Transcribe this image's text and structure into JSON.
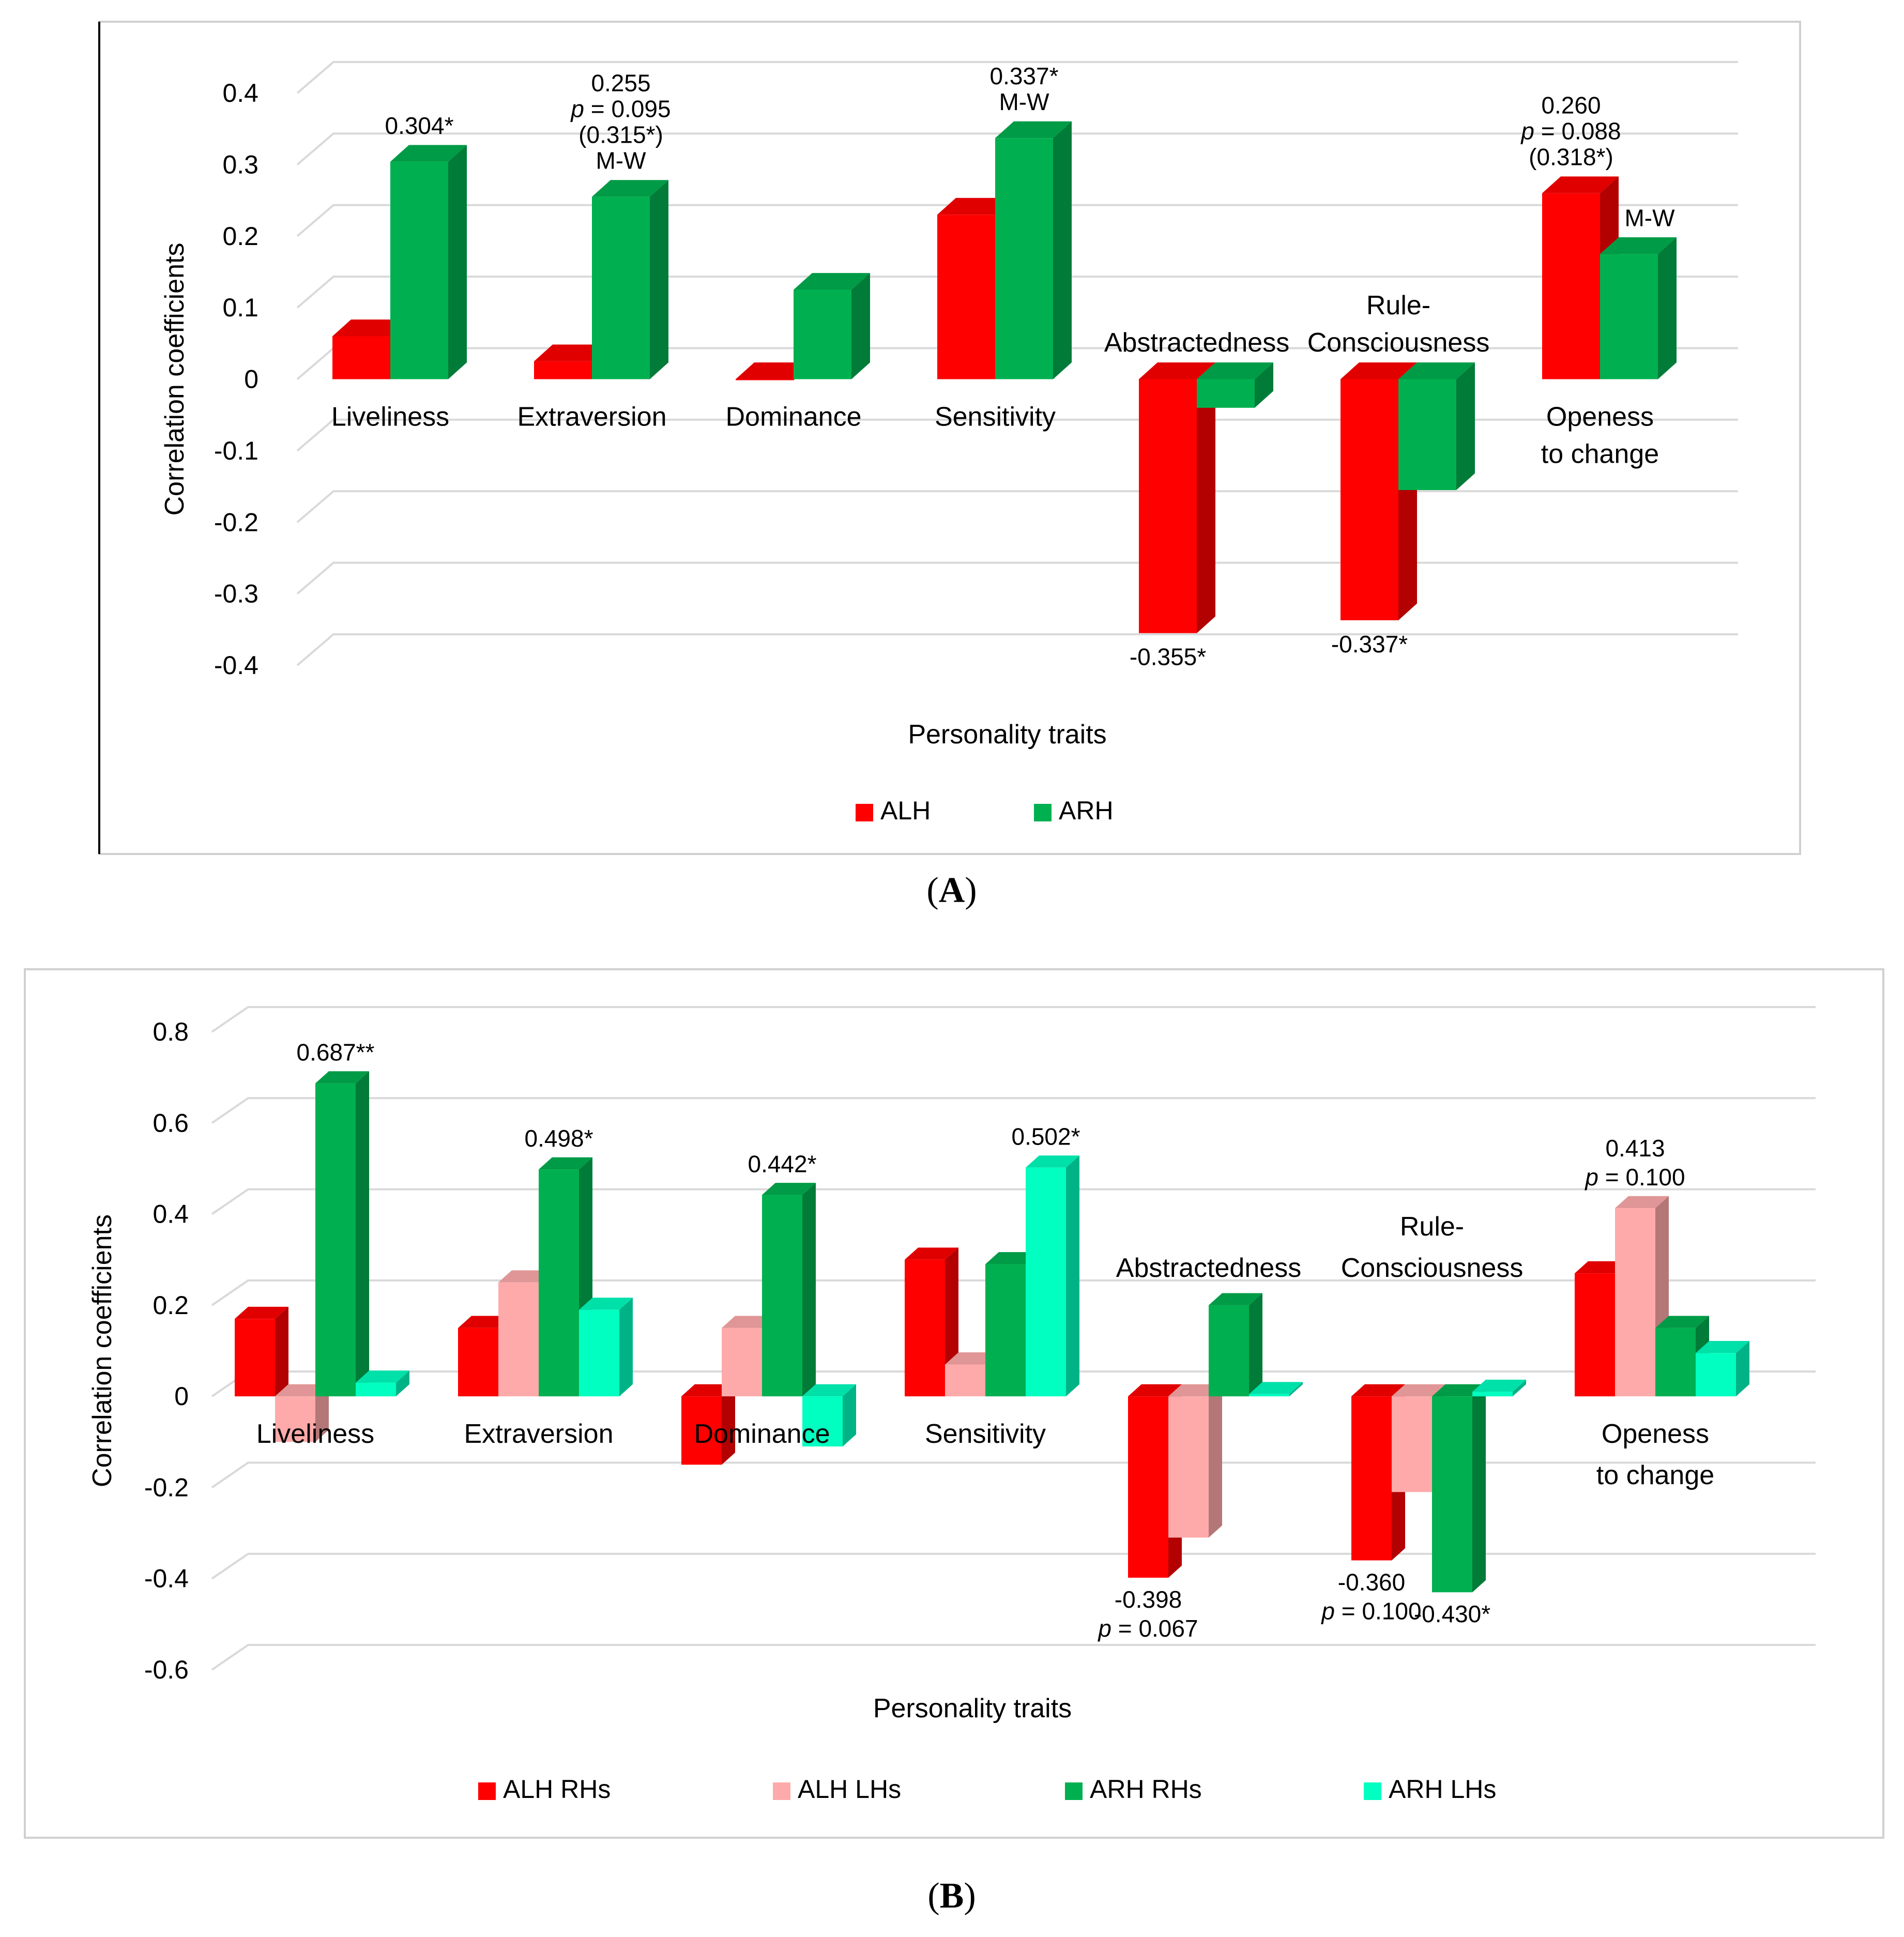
{
  "chart_data": [
    {
      "panel_label": "A",
      "type": "bar",
      "style": "3d-clustered",
      "xlabel": "Personality traits",
      "ylabel": "Correlation coefficients",
      "ylim": [
        -0.4,
        0.4
      ],
      "yticks": [
        "0.4",
        "0.3",
        "0.2",
        "0.1",
        "0",
        "-0.1",
        "-0.2",
        "-0.3",
        "-0.4"
      ],
      "grid": true,
      "legend_position": "bottom",
      "categories": [
        {
          "lines": [
            "Liveliness"
          ]
        },
        {
          "lines": [
            "Extraversion"
          ]
        },
        {
          "lines": [
            "Dominance"
          ]
        },
        {
          "lines": [
            "Sensitivity"
          ]
        },
        {
          "lines": [
            "Abstractedness"
          ]
        },
        {
          "lines": [
            "Rule-",
            "Consciousness"
          ]
        },
        {
          "lines": [
            "Openess",
            "to change"
          ]
        }
      ],
      "series": [
        {
          "name": "ALH",
          "color": "#ff0000",
          "values": [
            0.06,
            0.025,
            0.0,
            0.23,
            -0.355,
            -0.337,
            0.26
          ]
        },
        {
          "name": "ARH",
          "color": "#00b050",
          "values": [
            0.304,
            0.255,
            0.125,
            0.337,
            -0.04,
            -0.155,
            0.175
          ]
        }
      ],
      "annotations": [
        {
          "category": 0,
          "series": 1,
          "lines": [
            "0.304*"
          ]
        },
        {
          "category": 1,
          "series": 1,
          "lines": [
            "0.255",
            "p = 0.095",
            "(0.315*)",
            "M-W"
          ]
        },
        {
          "category": 3,
          "series": 1,
          "lines": [
            "0.337*",
            "M-W"
          ]
        },
        {
          "category": 4,
          "series": 0,
          "lines": [
            "-0.355*"
          ]
        },
        {
          "category": 5,
          "series": 0,
          "lines": [
            "-0.337*"
          ]
        },
        {
          "category": 6,
          "series": 0,
          "lines": [
            "0.260",
            "p = 0.088",
            "(0.318*)"
          ]
        },
        {
          "category": 6,
          "series": 1,
          "lines": [
            "M-W"
          ]
        }
      ]
    },
    {
      "panel_label": "B",
      "type": "bar",
      "style": "3d-clustered",
      "xlabel": "Personality traits",
      "ylabel": "Correlation coefficients",
      "ylim": [
        -0.6,
        0.8
      ],
      "yticks": [
        "0.8",
        "0.6",
        "0.4",
        "0.2",
        "0",
        "-0.2",
        "-0.4",
        "-0.6"
      ],
      "grid": true,
      "legend_position": "bottom",
      "categories": [
        {
          "lines": [
            "Liveliness"
          ]
        },
        {
          "lines": [
            "Extraversion"
          ]
        },
        {
          "lines": [
            "Dominance"
          ]
        },
        {
          "lines": [
            "Sensitivity"
          ]
        },
        {
          "lines": [
            "Abstractedness"
          ]
        },
        {
          "lines": [
            "Rule-",
            "Consciousness"
          ]
        },
        {
          "lines": [
            "Openess",
            "to change"
          ]
        }
      ],
      "series": [
        {
          "name": "ALH RHs",
          "color": "#ff0000",
          "values": [
            0.17,
            0.15,
            -0.15,
            0.3,
            -0.398,
            -0.36,
            0.27
          ]
        },
        {
          "name": "ALH LHs",
          "color": "#ffaaaa",
          "values": [
            -0.1,
            0.25,
            0.15,
            0.07,
            -0.31,
            -0.21,
            0.413
          ]
        },
        {
          "name": "ARH RHs",
          "color": "#00b050",
          "values": [
            0.687,
            0.498,
            0.442,
            0.29,
            0.2,
            -0.43,
            0.15
          ]
        },
        {
          "name": "ARH LHs",
          "color": "#00ffc0",
          "values": [
            0.03,
            0.19,
            -0.11,
            0.502,
            0.005,
            0.01,
            0.095
          ]
        }
      ],
      "annotations": [
        {
          "category": 0,
          "series": 2,
          "lines": [
            "0.687**"
          ]
        },
        {
          "category": 1,
          "series": 2,
          "lines": [
            "0.498*"
          ]
        },
        {
          "category": 2,
          "series": 2,
          "lines": [
            "0.442*"
          ]
        },
        {
          "category": 3,
          "series": 3,
          "lines": [
            "0.502*"
          ]
        },
        {
          "category": 4,
          "series": 0,
          "lines": [
            "-0.398",
            "p = 0.067"
          ]
        },
        {
          "category": 5,
          "series": 0,
          "lines": [
            "-0.360",
            "p = 0.100"
          ]
        },
        {
          "category": 5,
          "series": 2,
          "lines": [
            "-0.430*"
          ]
        },
        {
          "category": 6,
          "series": 1,
          "lines": [
            "0.413",
            "p = 0.100"
          ]
        }
      ]
    }
  ]
}
